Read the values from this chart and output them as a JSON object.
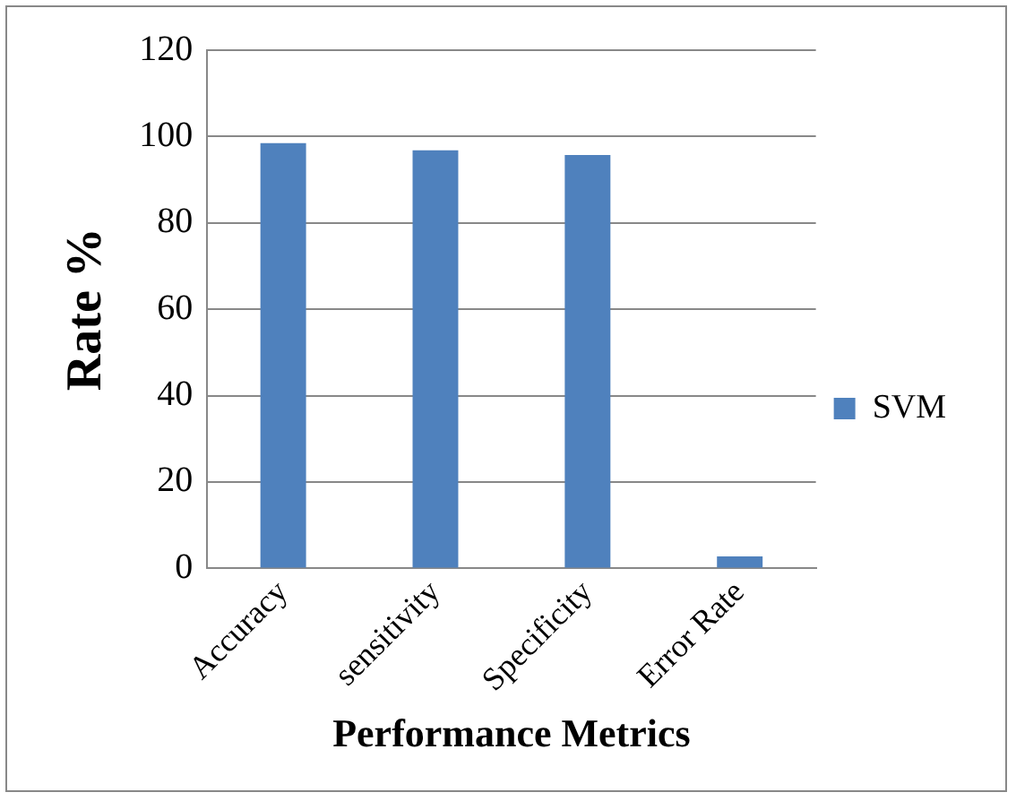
{
  "chart_data": {
    "type": "bar",
    "xlabel": "Performance Metrics",
    "ylabel": "Rate %",
    "categories": [
      "Accuracy",
      "sensitivity",
      "Specificity",
      "Error Rate"
    ],
    "series": [
      {
        "name": "SVM",
        "color": "#4f81bd",
        "values": [
          98.5,
          96.8,
          95.7,
          2.8
        ]
      }
    ],
    "ylim": [
      0,
      120
    ],
    "yticks": [
      0,
      20,
      40,
      60,
      80,
      100,
      120
    ],
    "grid": "y",
    "legend": "right"
  }
}
